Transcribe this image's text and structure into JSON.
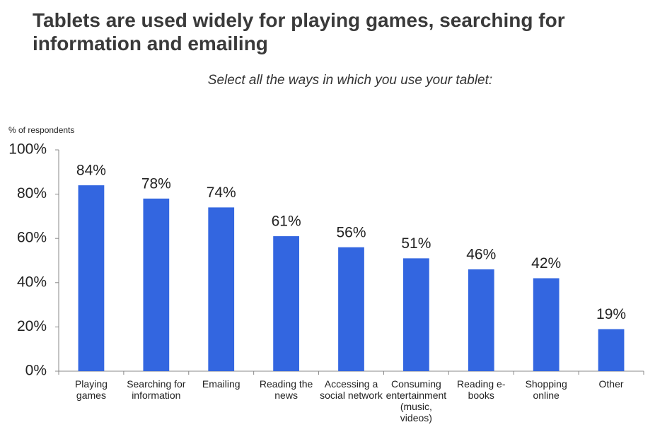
{
  "chart_data": {
    "type": "bar",
    "title": "Tablets are used widely for playing games, searching for information and emailing",
    "subtitle": "Select all the ways in which you use your tablet:",
    "y_label": "% of respondents",
    "categories": [
      "Playing games",
      "Searching for information",
      "Emailing",
      "Reading the news",
      "Accessing a social network",
      "Consuming entertainment (music, videos)",
      "Reading e-books",
      "Shopping online",
      "Other"
    ],
    "values": [
      84,
      78,
      74,
      61,
      56,
      51,
      46,
      42,
      19
    ],
    "value_labels": [
      "84%",
      "78%",
      "74%",
      "61%",
      "56%",
      "51%",
      "46%",
      "42%",
      "19%"
    ],
    "color": "#3366e0",
    "ylim": [
      0,
      100
    ],
    "yticks": [
      {
        "value": 0,
        "label": "0%"
      },
      {
        "value": 20,
        "label": "20%"
      },
      {
        "value": 40,
        "label": "40%"
      },
      {
        "value": 60,
        "label": "60%"
      },
      {
        "value": 80,
        "label": "80%"
      },
      {
        "value": 100,
        "label": "100%"
      }
    ],
    "grid": false
  }
}
